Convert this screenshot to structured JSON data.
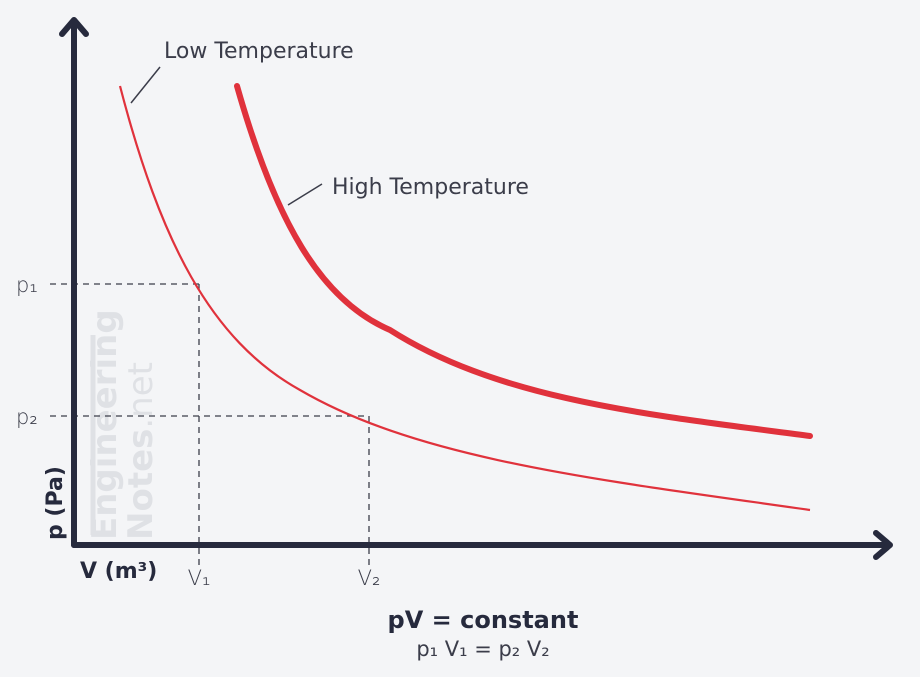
{
  "axes": {
    "y_label": "p (Pa)",
    "x_label": "V (m³)"
  },
  "ticks": {
    "p1": "p₁",
    "p2": "p₂",
    "v1": "V₁",
    "v2": "V₂"
  },
  "curves": {
    "low": {
      "label": "Low Temperature",
      "color": "#e0323c"
    },
    "high": {
      "label": "High Temperature",
      "color": "#e0323c"
    }
  },
  "equations": {
    "main": "pV = constant",
    "sub": "p₁ V₁ = p₂ V₂"
  },
  "watermark": {
    "line1": "Engineering",
    "line2_bold": "Notes",
    "line2_rest": ".net"
  },
  "colors": {
    "axis": "#262a3d",
    "guide": "#3b3d4a",
    "background": "#f4f5f7"
  }
}
